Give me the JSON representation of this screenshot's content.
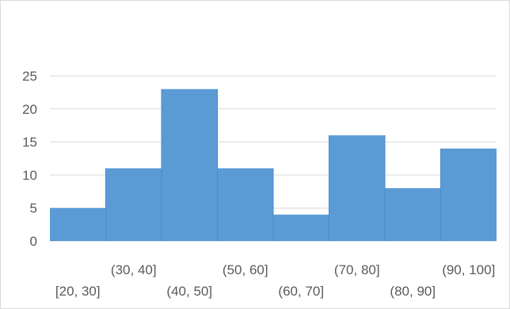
{
  "chart_data": {
    "type": "bar",
    "categories": [
      "[20, 30]",
      "(30, 40]",
      "(40, 50]",
      "(50, 60]",
      "(60, 70]",
      "(70, 80]",
      "(80, 90]",
      "(90, 100]"
    ],
    "values": [
      5,
      11,
      23,
      11,
      4,
      16,
      8,
      14
    ],
    "title": "",
    "xlabel": "",
    "ylabel": "",
    "ylim": [
      0,
      25
    ],
    "yticks": [
      "0",
      "5",
      "10",
      "15",
      "20",
      "25"
    ],
    "grid": true,
    "legend": "none",
    "bar_color": "#5b9bd5",
    "grid_color": "#d9d9d9"
  }
}
